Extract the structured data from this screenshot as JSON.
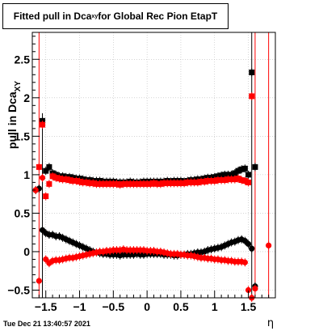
{
  "title": {
    "prefix": "Fitted pull in Dca",
    "subscript": "xy",
    "suffix": " for Global Rec Pion EtapT"
  },
  "timestamp": "Tue Dec 21 13:40:57 2021",
  "colors": {
    "black": "#000000",
    "red": "#ff0000"
  },
  "chart_data": {
    "type": "scatter",
    "title": "Fitted pull in Dca_xy for Global Rec Pion EtapT",
    "xlabel": "η",
    "ylabel": "pull in Dca",
    "ylabel_subscript": "XY",
    "xlim": [
      -1.7,
      1.9
    ],
    "ylim": [
      -0.6,
      2.85
    ],
    "xticks": [
      -1.5,
      -1,
      -0.5,
      0,
      0.5,
      1,
      1.5
    ],
    "xtick_labels": [
      "−1.5",
      "−1",
      "−0.5",
      "0",
      "0.5",
      "1",
      "1.5"
    ],
    "yticks": [
      -0.5,
      0,
      0.5,
      1,
      1.5,
      2,
      2.5
    ],
    "ytick_labels": [
      "−0.5",
      "0",
      "0.5",
      "1",
      "1.5",
      "2",
      "2.5"
    ],
    "grid": true,
    "series": [
      {
        "marker": "square",
        "color": "#000000",
        "x": [
          -1.55,
          -1.5,
          -1.45,
          -1.4,
          -1.35,
          -1.3,
          -1.25,
          -1.2,
          -1.15,
          -1.1,
          -1.05,
          -1.0,
          -0.95,
          -0.9,
          -0.85,
          -0.8,
          -0.75,
          -0.7,
          -0.65,
          -0.6,
          -0.55,
          -0.5,
          -0.45,
          -0.4,
          -0.35,
          -0.3,
          -0.25,
          -0.2,
          -0.15,
          -0.1,
          -0.05,
          0.0,
          0.05,
          0.1,
          0.15,
          0.2,
          0.25,
          0.3,
          0.35,
          0.4,
          0.45,
          0.5,
          0.55,
          0.6,
          0.65,
          0.7,
          0.75,
          0.8,
          0.85,
          0.9,
          0.95,
          1.0,
          1.05,
          1.1,
          1.15,
          1.2,
          1.25,
          1.3,
          1.35,
          1.4,
          1.45,
          1.5,
          1.55,
          1.6
        ],
        "y": [
          1.7,
          1.05,
          1.1,
          1.02,
          1.0,
          0.98,
          0.98,
          0.97,
          0.97,
          0.96,
          0.95,
          0.95,
          0.94,
          0.93,
          0.93,
          0.92,
          0.92,
          0.92,
          0.91,
          0.91,
          0.91,
          0.91,
          0.9,
          0.9,
          0.9,
          0.9,
          0.91,
          0.9,
          0.9,
          0.9,
          0.91,
          0.91,
          0.91,
          0.91,
          0.91,
          0.91,
          0.91,
          0.92,
          0.91,
          0.92,
          0.92,
          0.92,
          0.91,
          0.92,
          0.93,
          0.93,
          0.94,
          0.94,
          0.95,
          0.96,
          0.96,
          0.97,
          0.98,
          0.99,
          1.0,
          1.0,
          1.0,
          1.02,
          1.05,
          1.07,
          1.08,
          1.0,
          2.33,
          1.1
        ]
      },
      {
        "marker": "square",
        "color": "#ff0000",
        "x": [
          -1.6,
          -1.55,
          -1.5,
          -1.45,
          -1.4,
          -1.35,
          -1.3,
          -1.25,
          -1.2,
          -1.15,
          -1.1,
          -1.05,
          -1.0,
          -0.95,
          -0.9,
          -0.85,
          -0.8,
          -0.75,
          -0.7,
          -0.65,
          -0.6,
          -0.55,
          -0.5,
          -0.45,
          -0.4,
          -0.35,
          -0.3,
          -0.25,
          -0.2,
          -0.15,
          -0.1,
          -0.05,
          0.0,
          0.05,
          0.1,
          0.15,
          0.2,
          0.25,
          0.3,
          0.35,
          0.4,
          0.45,
          0.5,
          0.55,
          0.6,
          0.65,
          0.7,
          0.75,
          0.8,
          0.85,
          0.9,
          0.95,
          1.0,
          1.05,
          1.1,
          1.15,
          1.2,
          1.25,
          1.3,
          1.35,
          1.4,
          1.45,
          1.5,
          1.55
        ],
        "y": [
          1.1,
          1.65,
          0.72,
          0.88,
          0.98,
          0.96,
          0.95,
          0.94,
          0.94,
          0.93,
          0.92,
          0.92,
          0.91,
          0.9,
          0.9,
          0.89,
          0.89,
          0.88,
          0.88,
          0.88,
          0.88,
          0.88,
          0.88,
          0.88,
          0.87,
          0.88,
          0.88,
          0.88,
          0.88,
          0.88,
          0.88,
          0.88,
          0.88,
          0.88,
          0.89,
          0.88,
          0.88,
          0.89,
          0.89,
          0.89,
          0.89,
          0.89,
          0.89,
          0.89,
          0.9,
          0.9,
          0.9,
          0.9,
          0.91,
          0.91,
          0.92,
          0.92,
          0.92,
          0.93,
          0.93,
          0.93,
          0.94,
          0.94,
          0.94,
          0.95,
          0.93,
          0.92,
          0.9,
          2.02
        ]
      },
      {
        "marker": "circle",
        "color": "#000000",
        "x": [
          -1.65,
          -1.6,
          -1.55,
          -1.5,
          -1.45,
          -1.4,
          -1.35,
          -1.3,
          -1.25,
          -1.2,
          -1.15,
          -1.1,
          -1.05,
          -1.0,
          -0.95,
          -0.9,
          -0.85,
          -0.8,
          -0.75,
          -0.7,
          -0.65,
          -0.6,
          -0.55,
          -0.5,
          -0.45,
          -0.4,
          -0.35,
          -0.3,
          -0.25,
          -0.2,
          -0.15,
          -0.1,
          -0.05,
          0.0,
          0.05,
          0.1,
          0.15,
          0.2,
          0.25,
          0.3,
          0.35,
          0.4,
          0.45,
          0.5,
          0.55,
          0.6,
          0.65,
          0.7,
          0.75,
          0.8,
          0.85,
          0.9,
          0.95,
          1.0,
          1.05,
          1.1,
          1.15,
          1.2,
          1.25,
          1.3,
          1.35,
          1.4,
          1.45,
          1.5,
          1.55,
          1.6
        ],
        "y": [
          0.8,
          0.82,
          0.28,
          0.24,
          0.22,
          0.22,
          0.2,
          0.2,
          0.18,
          0.16,
          0.14,
          0.12,
          0.1,
          0.08,
          0.06,
          0.04,
          0.02,
          0.0,
          -0.01,
          -0.02,
          -0.03,
          -0.03,
          -0.04,
          -0.04,
          -0.04,
          -0.05,
          -0.04,
          -0.04,
          -0.04,
          -0.04,
          -0.03,
          -0.04,
          -0.04,
          -0.03,
          -0.03,
          -0.03,
          -0.03,
          -0.03,
          -0.04,
          -0.04,
          -0.04,
          -0.05,
          -0.05,
          -0.04,
          -0.04,
          -0.03,
          -0.03,
          -0.02,
          -0.01,
          -0.01,
          0.0,
          0.02,
          0.03,
          0.04,
          0.05,
          0.06,
          0.08,
          0.1,
          0.12,
          0.13,
          0.15,
          0.16,
          0.14,
          0.1,
          0.04,
          -0.45
        ]
      },
      {
        "marker": "circle",
        "color": "#ff0000",
        "x": [
          -1.65,
          -1.6,
          -1.55,
          -1.5,
          -1.45,
          -1.4,
          -1.35,
          -1.3,
          -1.25,
          -1.2,
          -1.15,
          -1.1,
          -1.05,
          -1.0,
          -0.95,
          -0.9,
          -0.85,
          -0.8,
          -0.75,
          -0.7,
          -0.65,
          -0.6,
          -0.55,
          -0.5,
          -0.45,
          -0.4,
          -0.35,
          -0.3,
          -0.25,
          -0.2,
          -0.15,
          -0.1,
          -0.05,
          0.0,
          0.05,
          0.1,
          0.15,
          0.2,
          0.25,
          0.3,
          0.35,
          0.4,
          0.45,
          0.5,
          0.55,
          0.6,
          0.65,
          0.7,
          0.75,
          0.8,
          0.85,
          0.9,
          0.95,
          1.0,
          1.05,
          1.1,
          1.15,
          1.2,
          1.25,
          1.3,
          1.35,
          1.4,
          1.45,
          1.5,
          1.55,
          1.6,
          1.8
        ],
        "y": [
          0.8,
          -0.38,
          0.96,
          -0.1,
          -0.15,
          -0.12,
          -0.11,
          -0.11,
          -0.1,
          -0.09,
          -0.08,
          -0.08,
          -0.07,
          -0.06,
          -0.05,
          -0.04,
          -0.03,
          -0.02,
          -0.01,
          0.0,
          0.0,
          0.01,
          0.01,
          0.02,
          0.02,
          0.02,
          0.03,
          0.02,
          0.02,
          0.02,
          0.02,
          0.02,
          0.02,
          0.01,
          0.01,
          0.01,
          0.0,
          0.0,
          -0.01,
          -0.02,
          -0.03,
          -0.03,
          -0.03,
          -0.04,
          -0.04,
          -0.05,
          -0.05,
          -0.06,
          -0.07,
          -0.08,
          -0.08,
          -0.09,
          -0.09,
          -0.1,
          -0.1,
          -0.11,
          -0.11,
          -0.12,
          -0.12,
          -0.13,
          -0.13,
          -0.13,
          -0.14,
          -0.5,
          -0.6,
          -0.48,
          0.08
        ]
      }
    ],
    "error_bar_points": [
      {
        "x": -1.6,
        "ymin": -0.6,
        "ymax": 2.85,
        "color": "#ff0000"
      },
      {
        "x": -1.55,
        "ymin": -0.6,
        "ymax": 1.8,
        "color": "#000000"
      },
      {
        "x": 1.55,
        "ymin": -0.6,
        "ymax": 2.85,
        "color": "#000000"
      },
      {
        "x": 1.6,
        "ymin": -0.6,
        "ymax": 2.85,
        "color": "#ff0000"
      },
      {
        "x": 1.8,
        "ymin": -0.6,
        "ymax": 2.85,
        "color": "#ff0000"
      }
    ]
  }
}
